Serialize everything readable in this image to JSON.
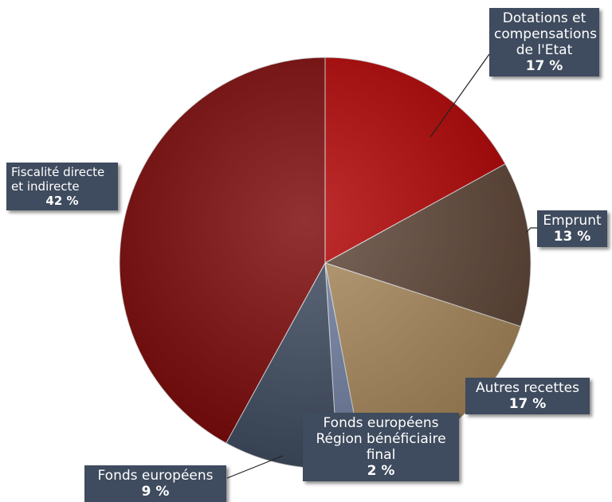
{
  "chart_data": {
    "type": "pie",
    "title": "",
    "slices": [
      {
        "label": "Dotations et compensations de l'Etat",
        "value": 17,
        "pct_text": "17 %",
        "color": "#b10000"
      },
      {
        "label": "Emprunt",
        "value": 13,
        "pct_text": "13 %",
        "color": "#5e4436"
      },
      {
        "label": "Autres recettes",
        "value": 17,
        "pct_text": "17 %",
        "color": "#a8885a"
      },
      {
        "label": "Fonds européens Région bénéficiaire final",
        "value": 2,
        "pct_text": "2 %",
        "color": "#6f7ea0"
      },
      {
        "label": "Fonds européens",
        "value": 9,
        "pct_text": "9 %",
        "color": "#3d4a5f"
      },
      {
        "label": "Fiscalité directe et indirecte",
        "value": 42,
        "pct_text": "42 %",
        "color": "#7a0505"
      }
    ]
  },
  "labels": {
    "dotations": {
      "name": "Dotations et\ncompensations\nde l'Etat",
      "pct": "17 %"
    },
    "emprunt": {
      "name": "Emprunt",
      "pct": "13 %"
    },
    "autres": {
      "name": "Autres recettes",
      "pct": "17 %"
    },
    "fonds_region": {
      "name": "Fonds européens\nRégion bénéficiaire\nfinal",
      "pct": "2 %"
    },
    "fonds": {
      "name": "Fonds européens",
      "pct": "9  %"
    },
    "fiscalite": {
      "name": "Fiscalité directe\net indirecte",
      "pct": "42 %"
    }
  }
}
